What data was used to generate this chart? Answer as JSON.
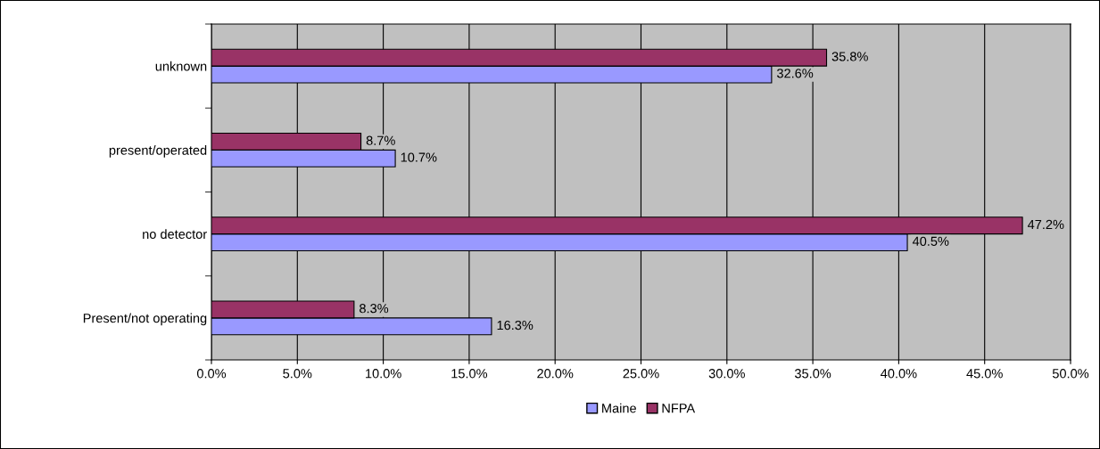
{
  "chart_data": {
    "type": "bar",
    "orientation": "horizontal",
    "categories": [
      "unknown",
      "present/operated",
      "no detector",
      "Present/not operating"
    ],
    "series": [
      {
        "name": "Maine",
        "color": "#9999ff",
        "values": [
          32.6,
          10.7,
          40.5,
          16.3
        ],
        "value_labels": [
          "32.6%",
          "10.7%",
          "40.5%",
          "16.3%"
        ]
      },
      {
        "name": "NFPA",
        "color": "#993366",
        "values": [
          35.8,
          8.7,
          47.2,
          8.3
        ],
        "value_labels": [
          "35.8%",
          "8.7%",
          "47.2%",
          "8.3%"
        ]
      }
    ],
    "xlim": [
      0,
      50
    ],
    "xticks": [
      {
        "value": 0,
        "label": "0.0%"
      },
      {
        "value": 5,
        "label": "5.0%"
      },
      {
        "value": 10,
        "label": "10.0%"
      },
      {
        "value": 15,
        "label": "15.0%"
      },
      {
        "value": 20,
        "label": "20.0%"
      },
      {
        "value": 25,
        "label": "25.0%"
      },
      {
        "value": 30,
        "label": "30.0%"
      },
      {
        "value": 35,
        "label": "35.0%"
      },
      {
        "value": 40,
        "label": "40.0%"
      },
      {
        "value": 45,
        "label": "45.0%"
      },
      {
        "value": 50,
        "label": "50.0%"
      }
    ],
    "grid": "x",
    "legend": "bottom"
  }
}
